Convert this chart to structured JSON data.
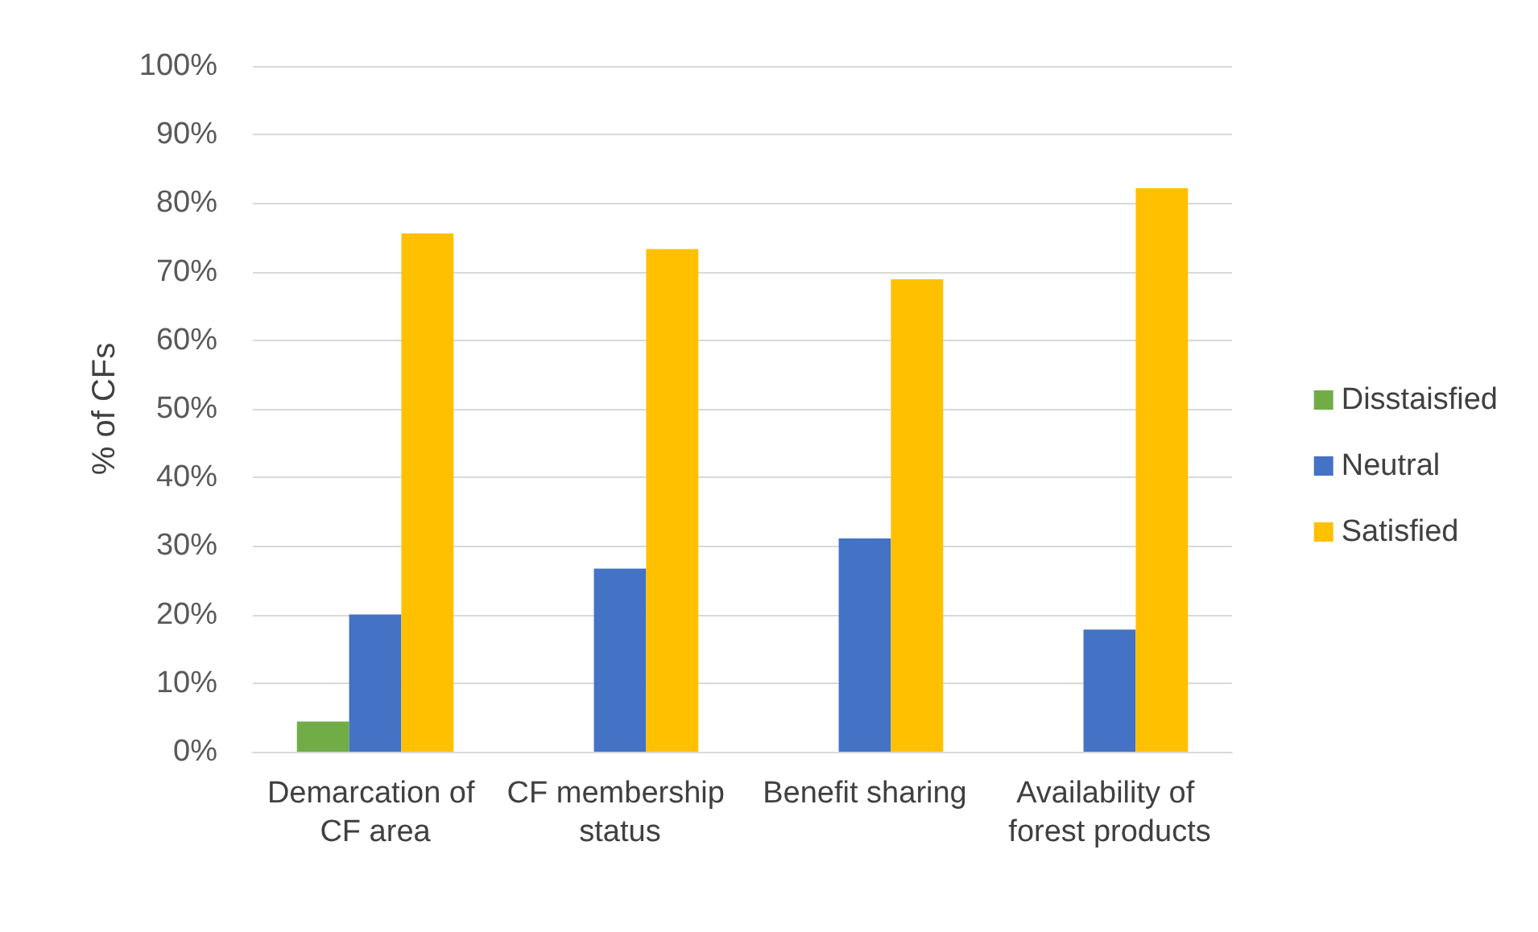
{
  "chart_data": {
    "type": "bar",
    "ylabel": "% of CFs",
    "categories": [
      "Demarcation of CF area",
      "CF membership status",
      "Benefit sharing",
      "Availability of forest products"
    ],
    "series": [
      {
        "name": "Disstaisfied",
        "color": "#70ad47",
        "values": [
          4.4,
          0,
          0,
          0
        ]
      },
      {
        "name": "Neutral",
        "color": "#4472c4",
        "values": [
          20,
          26.7,
          31.1,
          17.8
        ]
      },
      {
        "name": "Satisfied",
        "color": "#ffc000",
        "values": [
          75.6,
          73.3,
          68.9,
          82.2
        ]
      }
    ],
    "ylim": [
      0,
      100
    ],
    "yticks": [
      {
        "value": 0,
        "label": "0%"
      },
      {
        "value": 10,
        "label": "10%"
      },
      {
        "value": 20,
        "label": "20%"
      },
      {
        "value": 30,
        "label": "30%"
      },
      {
        "value": 40,
        "label": "40%"
      },
      {
        "value": 50,
        "label": "50%"
      },
      {
        "value": 60,
        "label": "60%"
      },
      {
        "value": 70,
        "label": "70%"
      },
      {
        "value": 80,
        "label": "80%"
      },
      {
        "value": 90,
        "label": "90%"
      },
      {
        "value": 100,
        "label": "100%"
      }
    ],
    "grid": "y",
    "legend": "right"
  }
}
